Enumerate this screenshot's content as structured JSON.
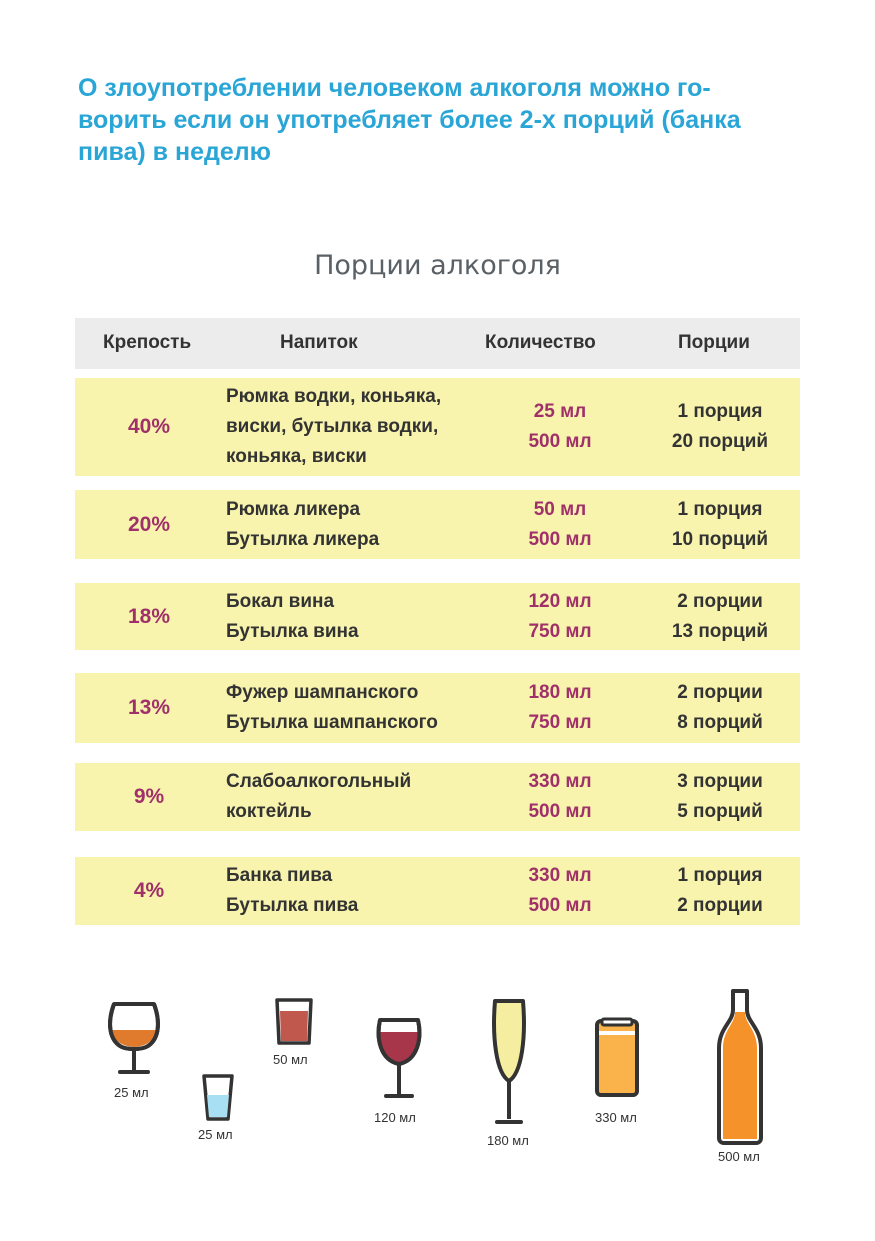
{
  "intro_text": "О злоупотреблении человеком алкоголя можно го­ворить если он употребляет более 2-х порций (банка пива) в неделю",
  "intro_lines": [
    "О злоупотреблении человеком алкоголя можно го-",
    "ворить если он употребляет более 2-х порций (банка",
    "пива) в неделю"
  ],
  "table_title": "Порции алкоголя",
  "headers": {
    "strength": "Крепость",
    "drink": "Напиток",
    "amount": "Количество",
    "portions": "Порции"
  },
  "rows": [
    {
      "strength": "40%",
      "drink": [
        "Рюмка водки, коньяка,",
        "виски, бутылка водки,",
        "коньяка, виски"
      ],
      "amount": [
        "25 мл",
        "500 мл"
      ],
      "portions": [
        "1 порция",
        "20 порций"
      ]
    },
    {
      "strength": "20%",
      "drink": [
        "Рюмка ликера",
        "Бутылка ликера"
      ],
      "amount": [
        "50 мл",
        "500 мл"
      ],
      "portions": [
        "1 порция",
        "10 порций"
      ]
    },
    {
      "strength": "18%",
      "drink": [
        "Бокал вина",
        "Бутылка вина"
      ],
      "amount": [
        "120 мл",
        "750 мл"
      ],
      "portions": [
        "2 порции",
        "13 порций"
      ]
    },
    {
      "strength": "13%",
      "drink": [
        "Фужер шампанского",
        "Бутылка шампанского"
      ],
      "amount": [
        "180 мл",
        "750 мл"
      ],
      "portions": [
        "2 порции",
        "8 порций"
      ]
    },
    {
      "strength": "9%",
      "drink": [
        "Слабоалкогольный",
        "коктейль"
      ],
      "amount": [
        "330 мл",
        "500 мл"
      ],
      "portions": [
        "3 порции",
        "5 порций"
      ]
    },
    {
      "strength": "4%",
      "drink": [
        "Банка пива",
        "Бутылка пива"
      ],
      "amount": [
        "330 мл",
        "500 мл"
      ],
      "portions": [
        "1 порция",
        "2 порции"
      ]
    }
  ],
  "glasses": [
    {
      "icon": "cognac-glass-icon",
      "label": "25 мл"
    },
    {
      "icon": "vodka-shot-icon",
      "label": "25 мл"
    },
    {
      "icon": "liqueur-glass-icon",
      "label": "50 мл"
    },
    {
      "icon": "wine-glass-icon",
      "label": "120 мл"
    },
    {
      "icon": "champagne-flute-icon",
      "label": "180 мл"
    },
    {
      "icon": "beer-can-icon",
      "label": "330 мл"
    },
    {
      "icon": "bottle-icon",
      "label": "500 мл"
    }
  ],
  "colors": {
    "intro": "#2aa6d6",
    "row_background": "#f8f4ad",
    "header_background": "#ececec",
    "accent": "#a0306a",
    "cognac": "#e07a2c",
    "vodka": "#a8dff2",
    "liqueur": "#c0584e",
    "wine": "#a8364a",
    "champagne": "#f5eea0",
    "beer": "#f9b34a",
    "bottle": "#f5922a"
  }
}
